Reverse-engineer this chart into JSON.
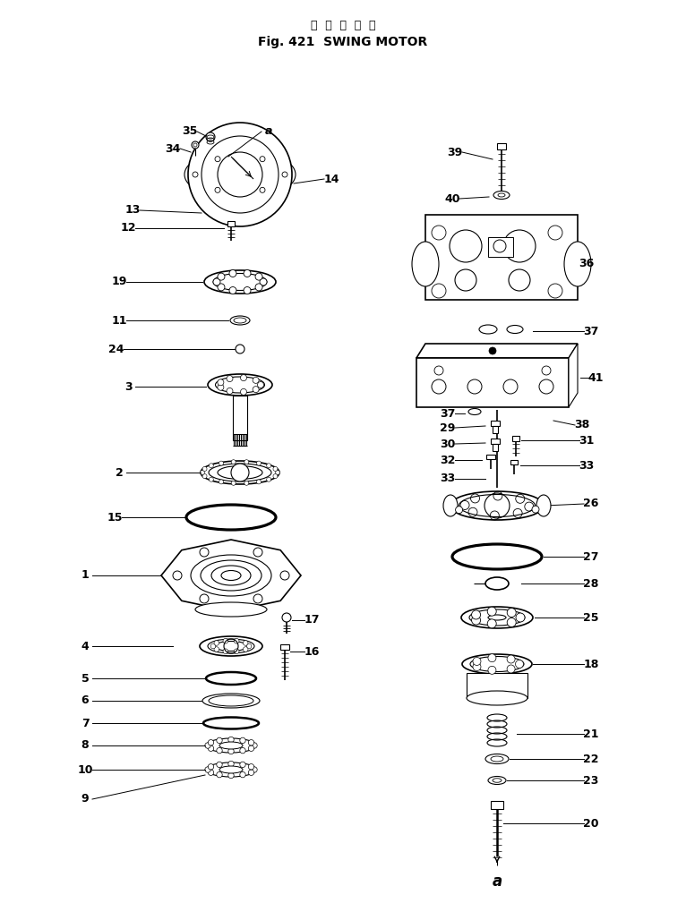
{
  "title_jp": "旋  回  モ  ー  タ",
  "title_en": "Fig. 421  SWING MOTOR",
  "bg": "#ffffff",
  "lc": "#000000",
  "fig_w": 7.66,
  "fig_h": 10.28
}
